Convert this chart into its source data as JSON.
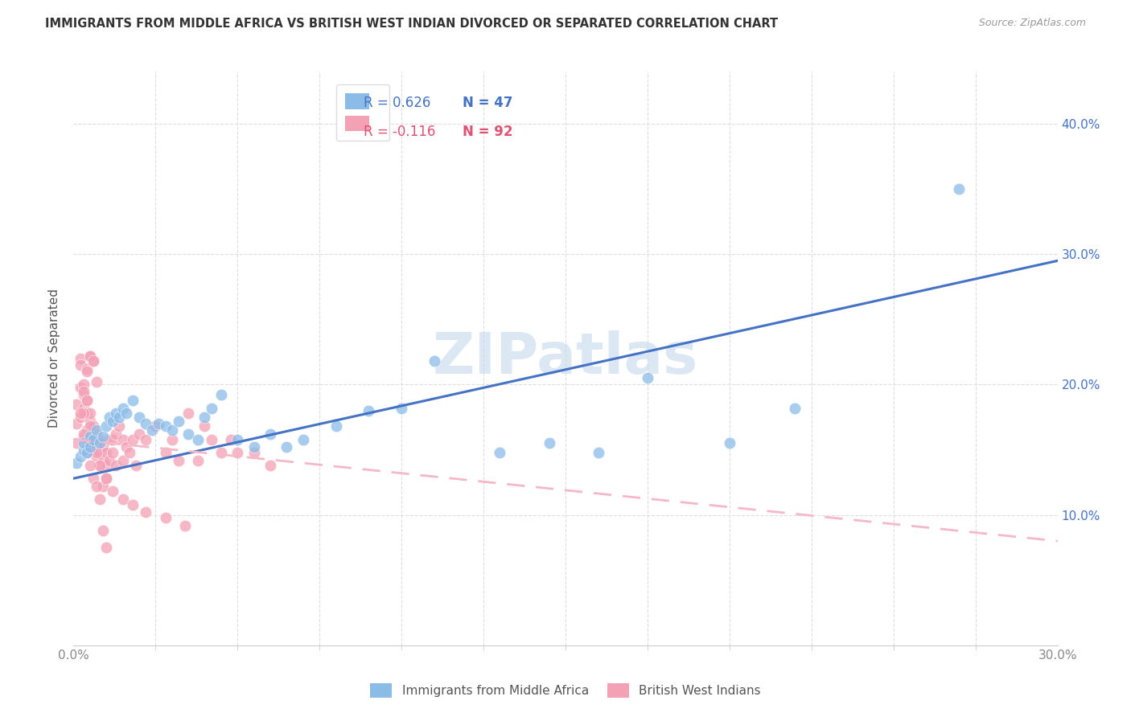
{
  "title": "IMMIGRANTS FROM MIDDLE AFRICA VS BRITISH WEST INDIAN DIVORCED OR SEPARATED CORRELATION CHART",
  "source": "Source: ZipAtlas.com",
  "ylabel": "Divorced or Separated",
  "xlim": [
    0.0,
    0.3
  ],
  "ylim": [
    0.0,
    0.44
  ],
  "xtick_vals": [
    0.0,
    0.3
  ],
  "xtick_labels": [
    "0.0%",
    "30.0%"
  ],
  "xtick_minor_vals": [
    0.025,
    0.05,
    0.075,
    0.1,
    0.125,
    0.15,
    0.175,
    0.2,
    0.225,
    0.25,
    0.275
  ],
  "ytick_vals": [
    0.1,
    0.2,
    0.3,
    0.4
  ],
  "ytick_labels": [
    "10.0%",
    "20.0%",
    "30.0%",
    "40.0%"
  ],
  "blue_scatter_color": "#8BBCE8",
  "pink_scatter_color": "#F4A0B5",
  "blue_line_color": "#4472C4",
  "pink_line_color": "#F4B8C8",
  "legend_blue_r": "R = 0.626",
  "legend_blue_n": "N = 47",
  "legend_pink_r": "R = -0.116",
  "legend_pink_n": "N = 92",
  "legend_r_color_blue": "#4472C4",
  "legend_n_color_blue": "#4472C4",
  "legend_r_color_pink": "#E05070",
  "legend_n_color_pink": "#E05070",
  "watermark": "ZIPatlas",
  "watermark_color": "#C5D8EE",
  "bottom_label_blue": "Immigrants from Middle Africa",
  "bottom_label_pink": "British West Indians",
  "scatter_blue_x": [
    0.001,
    0.002,
    0.003,
    0.003,
    0.004,
    0.005,
    0.005,
    0.006,
    0.007,
    0.008,
    0.009,
    0.01,
    0.011,
    0.012,
    0.013,
    0.014,
    0.015,
    0.016,
    0.018,
    0.02,
    0.022,
    0.024,
    0.026,
    0.028,
    0.03,
    0.032,
    0.035,
    0.038,
    0.04,
    0.042,
    0.045,
    0.05,
    0.055,
    0.06,
    0.065,
    0.07,
    0.08,
    0.09,
    0.1,
    0.11,
    0.13,
    0.145,
    0.16,
    0.175,
    0.2,
    0.22,
    0.27
  ],
  "scatter_blue_y": [
    0.14,
    0.145,
    0.15,
    0.155,
    0.148,
    0.152,
    0.16,
    0.158,
    0.165,
    0.155,
    0.16,
    0.168,
    0.175,
    0.172,
    0.178,
    0.175,
    0.182,
    0.178,
    0.188,
    0.175,
    0.17,
    0.165,
    0.17,
    0.168,
    0.165,
    0.172,
    0.162,
    0.158,
    0.175,
    0.182,
    0.192,
    0.158,
    0.152,
    0.162,
    0.152,
    0.158,
    0.168,
    0.18,
    0.182,
    0.218,
    0.148,
    0.155,
    0.148,
    0.205,
    0.155,
    0.182,
    0.35
  ],
  "scatter_pink_x": [
    0.001,
    0.001,
    0.001,
    0.002,
    0.002,
    0.002,
    0.002,
    0.003,
    0.003,
    0.003,
    0.003,
    0.004,
    0.004,
    0.004,
    0.004,
    0.005,
    0.005,
    0.005,
    0.005,
    0.006,
    0.006,
    0.006,
    0.007,
    0.007,
    0.007,
    0.008,
    0.008,
    0.008,
    0.009,
    0.009,
    0.01,
    0.01,
    0.01,
    0.011,
    0.011,
    0.012,
    0.012,
    0.013,
    0.013,
    0.014,
    0.015,
    0.015,
    0.016,
    0.017,
    0.018,
    0.019,
    0.02,
    0.022,
    0.025,
    0.028,
    0.03,
    0.032,
    0.035,
    0.038,
    0.04,
    0.042,
    0.045,
    0.048,
    0.05,
    0.055,
    0.06,
    0.003,
    0.004,
    0.005,
    0.006,
    0.004,
    0.005,
    0.006,
    0.007,
    0.003,
    0.004,
    0.005,
    0.006,
    0.007,
    0.008,
    0.009,
    0.01,
    0.012,
    0.015,
    0.018,
    0.022,
    0.028,
    0.034,
    0.002,
    0.003,
    0.004,
    0.005,
    0.006,
    0.007,
    0.008,
    0.009,
    0.01
  ],
  "scatter_pink_y": [
    0.155,
    0.17,
    0.185,
    0.22,
    0.198,
    0.215,
    0.175,
    0.182,
    0.192,
    0.2,
    0.16,
    0.178,
    0.165,
    0.188,
    0.155,
    0.162,
    0.172,
    0.178,
    0.155,
    0.158,
    0.168,
    0.152,
    0.152,
    0.162,
    0.145,
    0.148,
    0.158,
    0.138,
    0.142,
    0.152,
    0.138,
    0.148,
    0.128,
    0.158,
    0.142,
    0.158,
    0.148,
    0.138,
    0.162,
    0.168,
    0.158,
    0.142,
    0.152,
    0.148,
    0.158,
    0.138,
    0.162,
    0.158,
    0.168,
    0.148,
    0.158,
    0.142,
    0.178,
    0.142,
    0.168,
    0.158,
    0.148,
    0.158,
    0.148,
    0.148,
    0.138,
    0.195,
    0.212,
    0.222,
    0.218,
    0.21,
    0.222,
    0.218,
    0.202,
    0.178,
    0.188,
    0.168,
    0.158,
    0.148,
    0.138,
    0.122,
    0.128,
    0.118,
    0.112,
    0.108,
    0.102,
    0.098,
    0.092,
    0.178,
    0.162,
    0.148,
    0.138,
    0.128,
    0.122,
    0.112,
    0.088,
    0.075
  ],
  "blue_trendline_x": [
    0.0,
    0.3
  ],
  "blue_trendline_y": [
    0.128,
    0.295
  ],
  "pink_trendline_x": [
    0.0,
    0.3
  ],
  "pink_trendline_y": [
    0.158,
    0.08
  ],
  "background_color": "#FFFFFF",
  "grid_color": "#DDDDDD",
  "axis_color": "#CCCCCC",
  "tick_color": "#888888"
}
